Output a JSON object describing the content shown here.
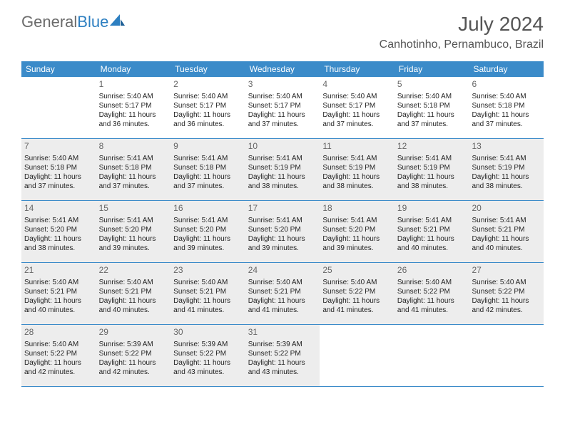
{
  "logo": {
    "text1": "General",
    "text2": "Blue"
  },
  "header": {
    "month": "July 2024",
    "location": "Canhotinho, Pernambuco, Brazil"
  },
  "colors": {
    "header_bg": "#3b8bc9",
    "header_text": "#ffffff",
    "grey_bg": "#ededed",
    "border": "#3b8bc9",
    "text": "#333333",
    "title": "#555555",
    "logo_grey": "#6b6b6b",
    "logo_blue": "#2d7fc1"
  },
  "day_names": [
    "Sunday",
    "Monday",
    "Tuesday",
    "Wednesday",
    "Thursday",
    "Friday",
    "Saturday"
  ],
  "weeks": [
    [
      {
        "day": "",
        "sunrise": "",
        "sunset": "",
        "daylight": "",
        "grey": false
      },
      {
        "day": "1",
        "sunrise": "Sunrise: 5:40 AM",
        "sunset": "Sunset: 5:17 PM",
        "daylight": "Daylight: 11 hours and 36 minutes.",
        "grey": false
      },
      {
        "day": "2",
        "sunrise": "Sunrise: 5:40 AM",
        "sunset": "Sunset: 5:17 PM",
        "daylight": "Daylight: 11 hours and 36 minutes.",
        "grey": false
      },
      {
        "day": "3",
        "sunrise": "Sunrise: 5:40 AM",
        "sunset": "Sunset: 5:17 PM",
        "daylight": "Daylight: 11 hours and 37 minutes.",
        "grey": false
      },
      {
        "day": "4",
        "sunrise": "Sunrise: 5:40 AM",
        "sunset": "Sunset: 5:17 PM",
        "daylight": "Daylight: 11 hours and 37 minutes.",
        "grey": false
      },
      {
        "day": "5",
        "sunrise": "Sunrise: 5:40 AM",
        "sunset": "Sunset: 5:18 PM",
        "daylight": "Daylight: 11 hours and 37 minutes.",
        "grey": false
      },
      {
        "day": "6",
        "sunrise": "Sunrise: 5:40 AM",
        "sunset": "Sunset: 5:18 PM",
        "daylight": "Daylight: 11 hours and 37 minutes.",
        "grey": false
      }
    ],
    [
      {
        "day": "7",
        "sunrise": "Sunrise: 5:40 AM",
        "sunset": "Sunset: 5:18 PM",
        "daylight": "Daylight: 11 hours and 37 minutes.",
        "grey": true
      },
      {
        "day": "8",
        "sunrise": "Sunrise: 5:41 AM",
        "sunset": "Sunset: 5:18 PM",
        "daylight": "Daylight: 11 hours and 37 minutes.",
        "grey": true
      },
      {
        "day": "9",
        "sunrise": "Sunrise: 5:41 AM",
        "sunset": "Sunset: 5:18 PM",
        "daylight": "Daylight: 11 hours and 37 minutes.",
        "grey": true
      },
      {
        "day": "10",
        "sunrise": "Sunrise: 5:41 AM",
        "sunset": "Sunset: 5:19 PM",
        "daylight": "Daylight: 11 hours and 38 minutes.",
        "grey": true
      },
      {
        "day": "11",
        "sunrise": "Sunrise: 5:41 AM",
        "sunset": "Sunset: 5:19 PM",
        "daylight": "Daylight: 11 hours and 38 minutes.",
        "grey": true
      },
      {
        "day": "12",
        "sunrise": "Sunrise: 5:41 AM",
        "sunset": "Sunset: 5:19 PM",
        "daylight": "Daylight: 11 hours and 38 minutes.",
        "grey": true
      },
      {
        "day": "13",
        "sunrise": "Sunrise: 5:41 AM",
        "sunset": "Sunset: 5:19 PM",
        "daylight": "Daylight: 11 hours and 38 minutes.",
        "grey": true
      }
    ],
    [
      {
        "day": "14",
        "sunrise": "Sunrise: 5:41 AM",
        "sunset": "Sunset: 5:20 PM",
        "daylight": "Daylight: 11 hours and 38 minutes.",
        "grey": true
      },
      {
        "day": "15",
        "sunrise": "Sunrise: 5:41 AM",
        "sunset": "Sunset: 5:20 PM",
        "daylight": "Daylight: 11 hours and 39 minutes.",
        "grey": true
      },
      {
        "day": "16",
        "sunrise": "Sunrise: 5:41 AM",
        "sunset": "Sunset: 5:20 PM",
        "daylight": "Daylight: 11 hours and 39 minutes.",
        "grey": true
      },
      {
        "day": "17",
        "sunrise": "Sunrise: 5:41 AM",
        "sunset": "Sunset: 5:20 PM",
        "daylight": "Daylight: 11 hours and 39 minutes.",
        "grey": true
      },
      {
        "day": "18",
        "sunrise": "Sunrise: 5:41 AM",
        "sunset": "Sunset: 5:20 PM",
        "daylight": "Daylight: 11 hours and 39 minutes.",
        "grey": true
      },
      {
        "day": "19",
        "sunrise": "Sunrise: 5:41 AM",
        "sunset": "Sunset: 5:21 PM",
        "daylight": "Daylight: 11 hours and 40 minutes.",
        "grey": true
      },
      {
        "day": "20",
        "sunrise": "Sunrise: 5:41 AM",
        "sunset": "Sunset: 5:21 PM",
        "daylight": "Daylight: 11 hours and 40 minutes.",
        "grey": true
      }
    ],
    [
      {
        "day": "21",
        "sunrise": "Sunrise: 5:40 AM",
        "sunset": "Sunset: 5:21 PM",
        "daylight": "Daylight: 11 hours and 40 minutes.",
        "grey": true
      },
      {
        "day": "22",
        "sunrise": "Sunrise: 5:40 AM",
        "sunset": "Sunset: 5:21 PM",
        "daylight": "Daylight: 11 hours and 40 minutes.",
        "grey": true
      },
      {
        "day": "23",
        "sunrise": "Sunrise: 5:40 AM",
        "sunset": "Sunset: 5:21 PM",
        "daylight": "Daylight: 11 hours and 41 minutes.",
        "grey": true
      },
      {
        "day": "24",
        "sunrise": "Sunrise: 5:40 AM",
        "sunset": "Sunset: 5:21 PM",
        "daylight": "Daylight: 11 hours and 41 minutes.",
        "grey": true
      },
      {
        "day": "25",
        "sunrise": "Sunrise: 5:40 AM",
        "sunset": "Sunset: 5:22 PM",
        "daylight": "Daylight: 11 hours and 41 minutes.",
        "grey": true
      },
      {
        "day": "26",
        "sunrise": "Sunrise: 5:40 AM",
        "sunset": "Sunset: 5:22 PM",
        "daylight": "Daylight: 11 hours and 41 minutes.",
        "grey": true
      },
      {
        "day": "27",
        "sunrise": "Sunrise: 5:40 AM",
        "sunset": "Sunset: 5:22 PM",
        "daylight": "Daylight: 11 hours and 42 minutes.",
        "grey": true
      }
    ],
    [
      {
        "day": "28",
        "sunrise": "Sunrise: 5:40 AM",
        "sunset": "Sunset: 5:22 PM",
        "daylight": "Daylight: 11 hours and 42 minutes.",
        "grey": true
      },
      {
        "day": "29",
        "sunrise": "Sunrise: 5:39 AM",
        "sunset": "Sunset: 5:22 PM",
        "daylight": "Daylight: 11 hours and 42 minutes.",
        "grey": true
      },
      {
        "day": "30",
        "sunrise": "Sunrise: 5:39 AM",
        "sunset": "Sunset: 5:22 PM",
        "daylight": "Daylight: 11 hours and 43 minutes.",
        "grey": true
      },
      {
        "day": "31",
        "sunrise": "Sunrise: 5:39 AM",
        "sunset": "Sunset: 5:22 PM",
        "daylight": "Daylight: 11 hours and 43 minutes.",
        "grey": true
      },
      {
        "day": "",
        "sunrise": "",
        "sunset": "",
        "daylight": "",
        "grey": false
      },
      {
        "day": "",
        "sunrise": "",
        "sunset": "",
        "daylight": "",
        "grey": false
      },
      {
        "day": "",
        "sunrise": "",
        "sunset": "",
        "daylight": "",
        "grey": false
      }
    ]
  ]
}
